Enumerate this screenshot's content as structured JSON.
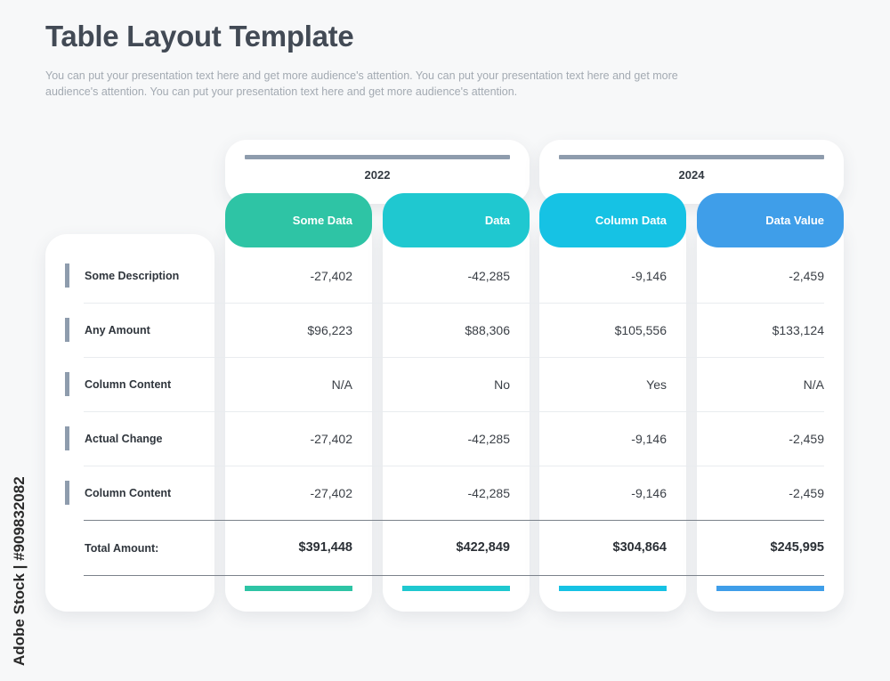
{
  "header": {
    "title": "Table Layout Template",
    "description": "You can put your presentation text here and get more audience's attention. You can put your presentation text here and get more audience's attention. You can put your presentation text here and get more audience's attention."
  },
  "years": [
    "2022",
    "2024"
  ],
  "columns": [
    {
      "label": "Some Data",
      "color": "#2ec4a5"
    },
    {
      "label": "Data",
      "color": "#1fc8d0"
    },
    {
      "label": "Column Data",
      "color": "#16c2e4"
    },
    {
      "label": "Data Value",
      "color": "#3f9ee9"
    }
  ],
  "rows": [
    {
      "label": "Some Description",
      "values": [
        "-27,402",
        "-42,285",
        "-9,146",
        "-2,459"
      ]
    },
    {
      "label": "Any Amount",
      "values": [
        "$96,223",
        "$88,306",
        "$105,556",
        "$133,124"
      ]
    },
    {
      "label": "Column Content",
      "values": [
        "N/A",
        "No",
        "Yes",
        "N/A"
      ]
    },
    {
      "label": "Actual Change",
      "values": [
        "-27,402",
        "-42,285",
        "-9,146",
        "-2,459"
      ]
    },
    {
      "label": "Column Content",
      "values": [
        "-27,402",
        "-42,285",
        "-9,146",
        "-2,459"
      ]
    }
  ],
  "total": {
    "label": "Total Amount:",
    "values": [
      "$391,448",
      "$422,849",
      "$304,864",
      "$245,995"
    ]
  },
  "side_watermark": "Adobe Stock | #909832082"
}
